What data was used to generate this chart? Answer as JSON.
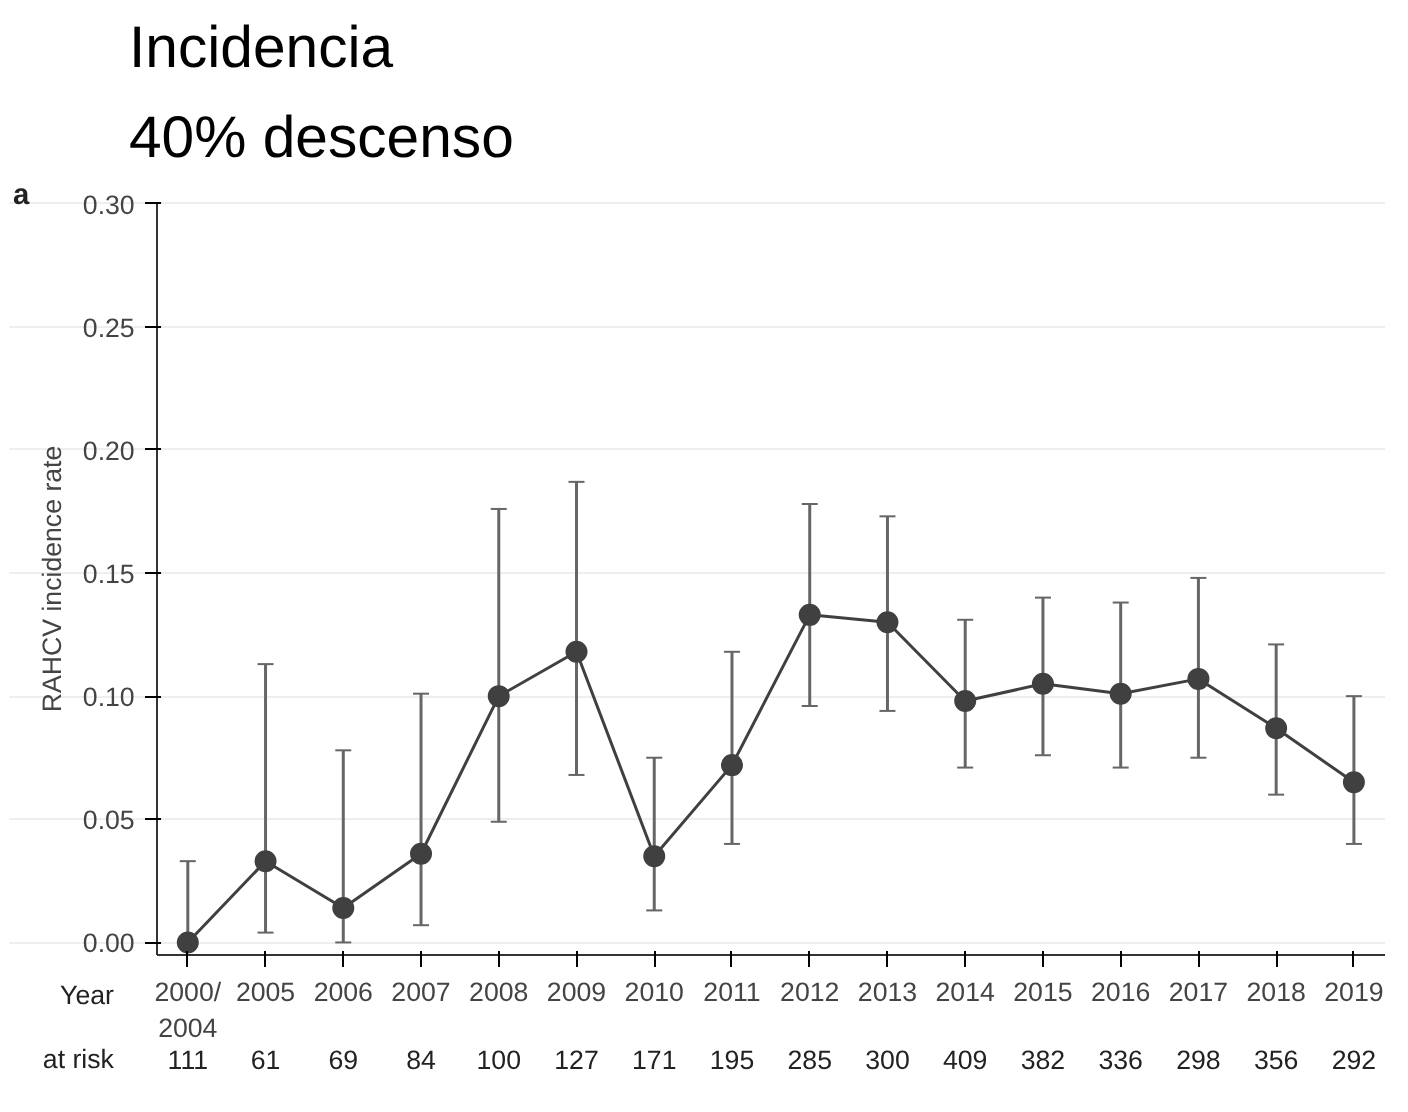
{
  "chart_data": {
    "type": "line",
    "title": "Incidencia",
    "subtitle": "40% descenso",
    "ylabel": "RAHCV incidence rate",
    "xlabel": "Year",
    "categories": [
      "2000/\n2004",
      "2005",
      "2006",
      "2007",
      "2008",
      "2009",
      "2010",
      "2011",
      "2012",
      "2013",
      "2014",
      "2015",
      "2016",
      "2017",
      "2018",
      "2019"
    ],
    "series": [
      {
        "color": "#404040",
        "values": [
          0.0,
          0.033,
          0.014,
          0.036,
          0.1,
          0.118,
          0.035,
          0.072,
          0.133,
          0.13,
          0.098,
          0.105,
          0.101,
          0.107,
          0.087,
          0.065
        ],
        "errors": [
          [
            0.0,
            0.033
          ],
          [
            0.004,
            0.113
          ],
          [
            0.0,
            0.078
          ],
          [
            0.007,
            0.101
          ],
          [
            0.049,
            0.176
          ],
          [
            0.068,
            0.187
          ],
          [
            0.013,
            0.075
          ],
          [
            0.04,
            0.118
          ],
          [
            0.096,
            0.178
          ],
          [
            0.094,
            0.173
          ],
          [
            0.071,
            0.131
          ],
          [
            0.076,
            0.14
          ],
          [
            0.071,
            0.138
          ],
          [
            0.075,
            0.148
          ],
          [
            0.06,
            0.121
          ],
          [
            0.04,
            0.1
          ]
        ]
      }
    ],
    "ylim": [
      -0.005,
      0.3
    ],
    "yticks": [
      {
        "value": 0,
        "label": "0.00"
      },
      {
        "value": 0.05,
        "label": "0.05"
      },
      {
        "value": 0.1,
        "label": "0.10"
      },
      {
        "value": 0.15,
        "label": "0.15"
      },
      {
        "value": 0.2,
        "label": "0.20"
      },
      {
        "value": 0.25,
        "label": "0.25"
      },
      {
        "value": 0.3,
        "label": "0.30"
      }
    ],
    "grid": "y",
    "marker": "circle",
    "line_style": "solid",
    "annotations": [
      "a",
      "at risk",
      "111",
      "61",
      "69",
      "84",
      "100",
      "127",
      "171",
      "195",
      "285",
      "300",
      "409",
      "382",
      "336",
      "298",
      "356",
      "292"
    ]
  }
}
